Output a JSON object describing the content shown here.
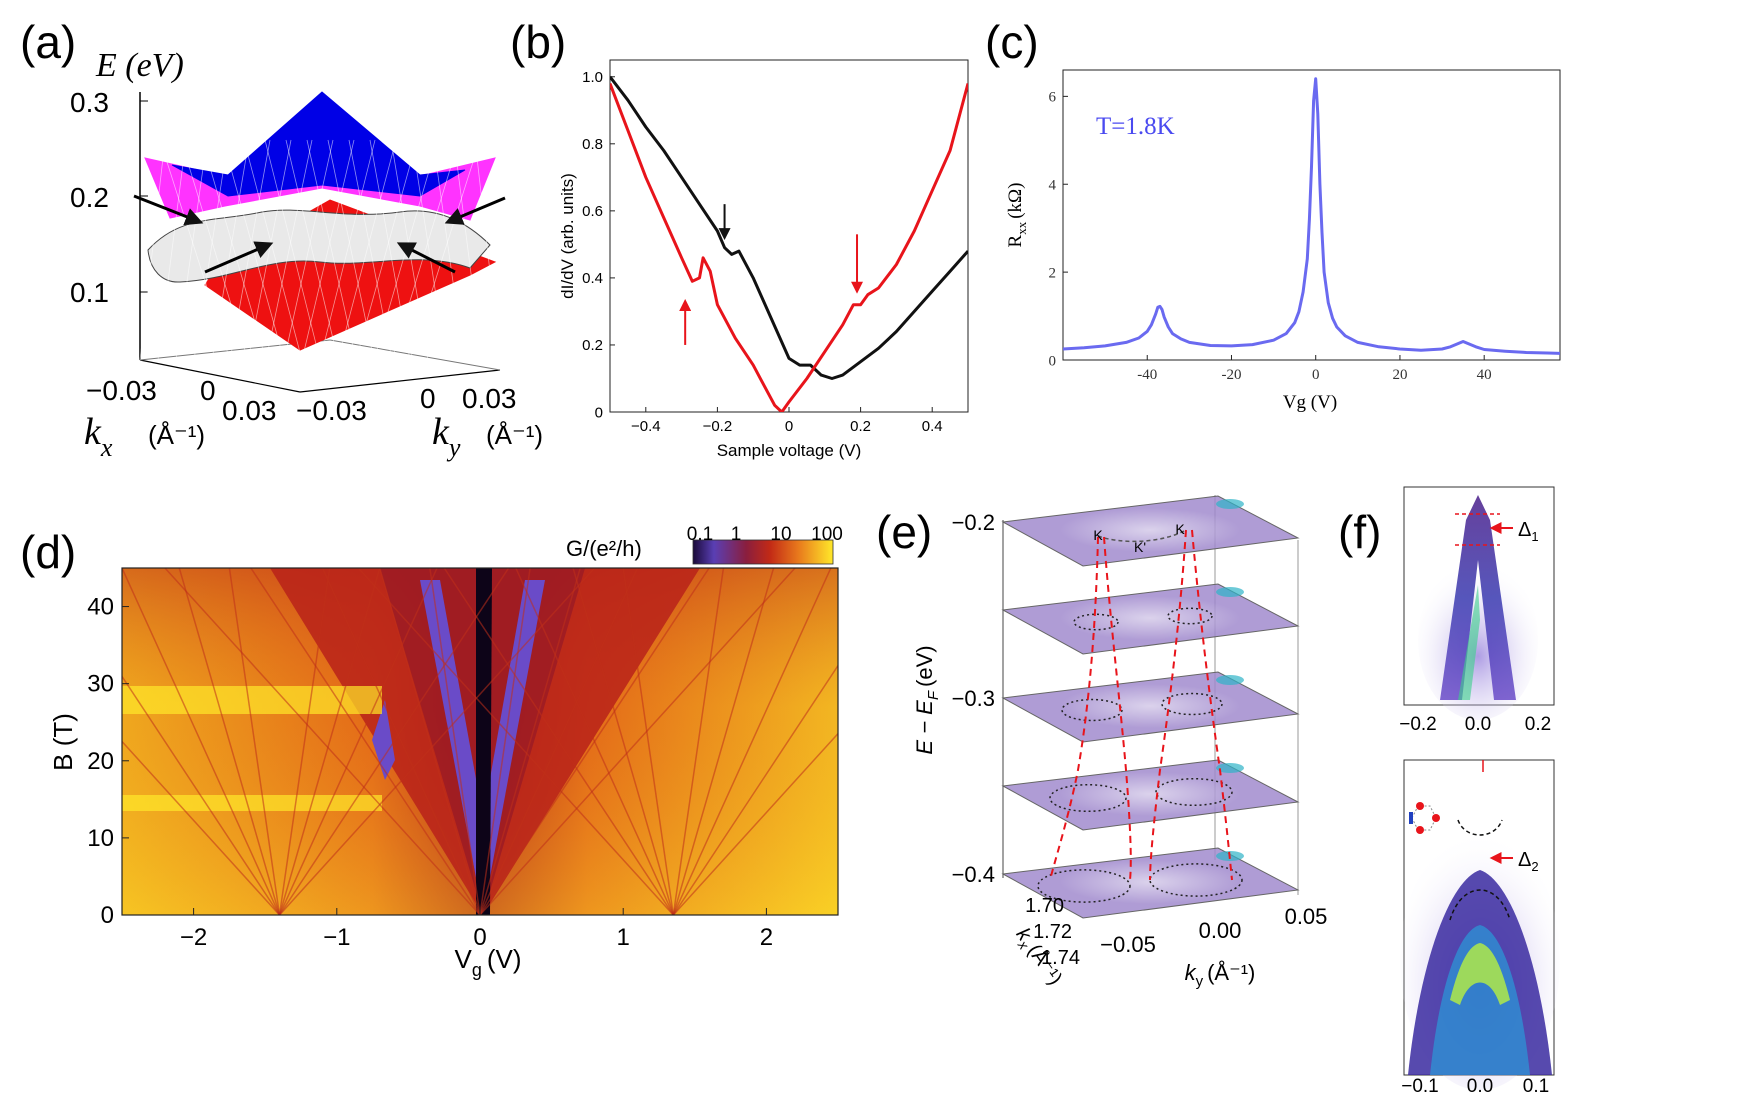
{
  "figure": {
    "panel_labels": [
      "(a)",
      "(b)",
      "(c)",
      "(d)",
      "(e)",
      "(f)"
    ]
  },
  "chart_data": [
    {
      "panel": "a",
      "type": "surface3d",
      "zlabel": "E (eV)",
      "zticks": [
        "0.3",
        "0.2",
        "0.1"
      ],
      "kx_label": "k",
      "kx_sub": "x",
      "kx_unit": "(Å⁻¹)",
      "ky_label": "k",
      "ky_sub": "y",
      "ky_unit": "(Å⁻¹)",
      "kx_ticks": [
        "−0.03",
        "0",
        "0.03"
      ],
      "ky_ticks": [
        "−0.03",
        "0",
        "0.03"
      ],
      "bands": [
        {
          "name": "upper cone",
          "color": "#0000e6"
        },
        {
          "name": "upper side band",
          "color": "#ff33ff"
        },
        {
          "name": "middle flat band",
          "color": "#555555"
        },
        {
          "name": "lower cone",
          "color": "#ee1111"
        }
      ]
    },
    {
      "panel": "b",
      "type": "line",
      "xlabel": "Sample voltage (V)",
      "ylabel": "dI/dV (arb. units)",
      "xlim": [
        -0.5,
        0.5
      ],
      "ylim": [
        0,
        1.05
      ],
      "xticks": [
        "−0.4",
        "−0.2",
        "0",
        "0.2",
        "0.4"
      ],
      "yticks": [
        "0",
        "0.2",
        "0.4",
        "0.6",
        "0.8",
        "1.0"
      ],
      "series": [
        {
          "name": "black",
          "color": "#111111",
          "x": [
            -0.5,
            -0.45,
            -0.4,
            -0.35,
            -0.3,
            -0.25,
            -0.2,
            -0.18,
            -0.16,
            -0.14,
            -0.1,
            -0.05,
            0.0,
            0.03,
            0.06,
            0.09,
            0.12,
            0.15,
            0.2,
            0.25,
            0.3,
            0.35,
            0.4,
            0.45,
            0.5
          ],
          "y": [
            1.0,
            0.93,
            0.85,
            0.78,
            0.7,
            0.62,
            0.54,
            0.49,
            0.47,
            0.48,
            0.4,
            0.28,
            0.16,
            0.14,
            0.14,
            0.11,
            0.1,
            0.11,
            0.15,
            0.19,
            0.24,
            0.3,
            0.36,
            0.42,
            0.48
          ]
        },
        {
          "name": "red",
          "color": "#e8141b",
          "x": [
            -0.5,
            -0.45,
            -0.4,
            -0.35,
            -0.3,
            -0.27,
            -0.25,
            -0.24,
            -0.22,
            -0.2,
            -0.15,
            -0.1,
            -0.07,
            -0.04,
            -0.02,
            0.0,
            0.05,
            0.1,
            0.15,
            0.18,
            0.2,
            0.22,
            0.25,
            0.3,
            0.35,
            0.4,
            0.45,
            0.5
          ],
          "y": [
            0.98,
            0.84,
            0.7,
            0.58,
            0.46,
            0.39,
            0.4,
            0.46,
            0.42,
            0.32,
            0.22,
            0.14,
            0.08,
            0.02,
            0.0,
            0.03,
            0.1,
            0.18,
            0.26,
            0.32,
            0.32,
            0.35,
            0.37,
            0.44,
            0.54,
            0.66,
            0.78,
            0.98
          ]
        }
      ],
      "annotations": [
        {
          "type": "arrow",
          "color": "#111111",
          "x": -0.18,
          "y_from": 0.62,
          "y_to": 0.52,
          "direction": "down"
        },
        {
          "type": "arrow",
          "color": "#e8141b",
          "x": -0.29,
          "y_from": 0.2,
          "y_to": 0.33,
          "direction": "up"
        },
        {
          "type": "arrow",
          "color": "#e8141b",
          "x": 0.19,
          "y_from": 0.53,
          "y_to": 0.36,
          "direction": "down"
        }
      ]
    },
    {
      "panel": "c",
      "type": "line",
      "title_text": "T=1.8K",
      "xlabel": "Vg (V)",
      "ylabel": "R",
      "ylabel_sub": "xx",
      "ylabel_unit": "(kΩ)",
      "xlim": [
        -60,
        58
      ],
      "ylim": [
        0,
        6.6
      ],
      "xticks": [
        "-40",
        "-20",
        "0",
        "20",
        "40"
      ],
      "yticks": [
        "0",
        "2",
        "4",
        "6"
      ],
      "series": [
        {
          "name": "Rxx",
          "color": "#6a6af0",
          "x": [
            -60,
            -55,
            -50,
            -45,
            -42,
            -40,
            -39,
            -38,
            -37.5,
            -37,
            -36.5,
            -36,
            -35,
            -34,
            -32,
            -30,
            -25,
            -20,
            -15,
            -10,
            -7,
            -5,
            -4,
            -3,
            -2,
            -1.5,
            -1,
            -0.5,
            0,
            0.5,
            1,
            1.5,
            2,
            3,
            4,
            5,
            7,
            10,
            15,
            20,
            25,
            30,
            32,
            34,
            35,
            36,
            38,
            40,
            45,
            50,
            55,
            58
          ],
          "y": [
            0.25,
            0.28,
            0.32,
            0.4,
            0.5,
            0.65,
            0.8,
            1.05,
            1.2,
            1.22,
            1.15,
            0.98,
            0.75,
            0.6,
            0.48,
            0.4,
            0.33,
            0.32,
            0.35,
            0.45,
            0.6,
            0.85,
            1.1,
            1.55,
            2.3,
            3.2,
            4.4,
            5.9,
            6.4,
            5.6,
            4.0,
            2.9,
            2.0,
            1.3,
            0.95,
            0.75,
            0.55,
            0.4,
            0.3,
            0.25,
            0.22,
            0.25,
            0.3,
            0.38,
            0.42,
            0.38,
            0.3,
            0.24,
            0.2,
            0.17,
            0.16,
            0.15
          ]
        }
      ]
    },
    {
      "panel": "d",
      "type": "heatmap",
      "xlabel": "V",
      "xlabel_sub": "g",
      "xlabel_unit": "(V)",
      "ylabel": "B (T)",
      "xlim": [
        -2.5,
        2.5
      ],
      "ylim": [
        0,
        45
      ],
      "xticks": [
        "−2",
        "−1",
        "0",
        "1",
        "2"
      ],
      "yticks": [
        "0",
        "10",
        "20",
        "30",
        "40"
      ],
      "colorbar_label": "G/(e²/h)",
      "colorbar_ticks": [
        "0.1",
        "1",
        "10",
        "100"
      ],
      "colorscale": [
        "#1a0a3a",
        "#6a4bc8",
        "#b82020",
        "#e0701a",
        "#ffe82a"
      ]
    },
    {
      "panel": "e",
      "type": "stacked_slices",
      "zlabel": "E − E",
      "zlabel_sub": "F",
      "zlabel_unit": "(eV)",
      "zticks": [
        "−0.2",
        "−0.3",
        "−0.4"
      ],
      "energies": [
        -0.2,
        -0.25,
        -0.3,
        -0.35,
        -0.4
      ],
      "kx_label": "k",
      "kx_sub": "x",
      "kx_unit": "(Å⁻¹)",
      "kx_ticks": [
        "1.70",
        "1.72",
        "1.74"
      ],
      "ky_label": "k",
      "ky_sub": "y",
      "ky_unit": "(Å⁻¹)",
      "ky_ticks": [
        "−0.05",
        "0.00",
        "0.05"
      ],
      "point_labels": [
        "K",
        "K'",
        "K"
      ]
    },
    {
      "panel": "f",
      "type": "arpes_pair",
      "top": {
        "xticks": [
          "−0.2",
          "0.0",
          "0.2"
        ],
        "gap_label": "Δ",
        "gap_sub": "1"
      },
      "bottom": {
        "xticks": [
          "−0.1",
          "0.0",
          "0.1"
        ],
        "gap_label": "Δ",
        "gap_sub": "2"
      }
    }
  ]
}
